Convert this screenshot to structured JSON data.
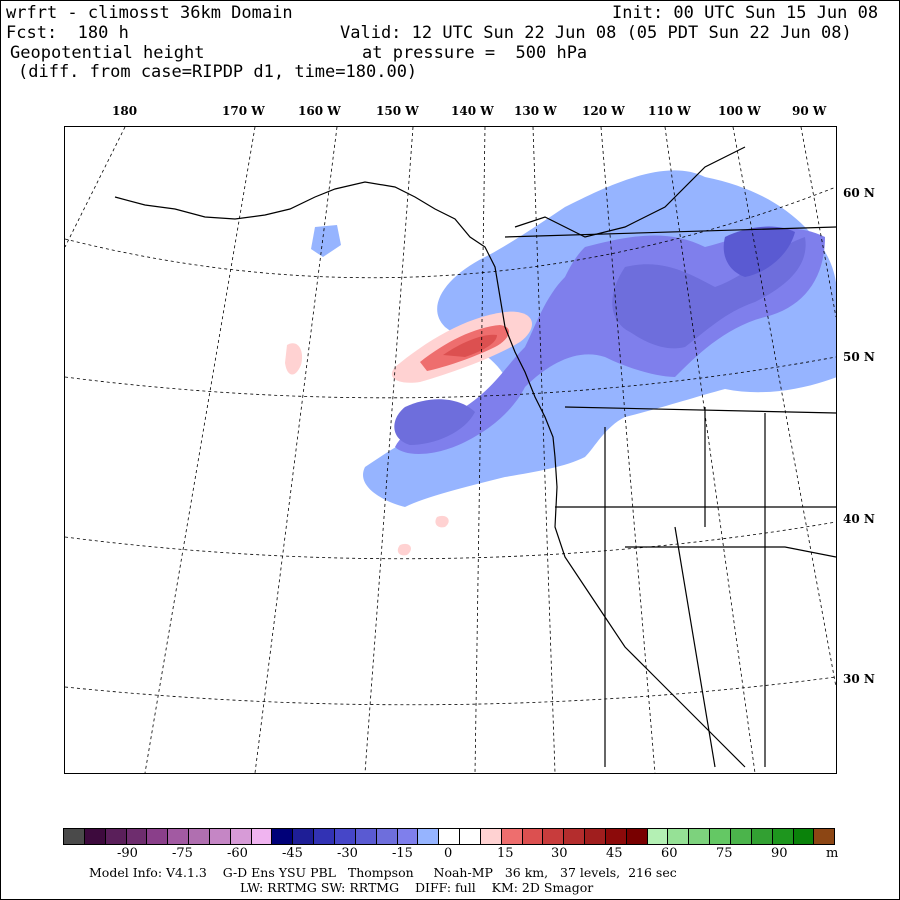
{
  "header": {
    "line1_left": "wrfrt - climosst 36km Domain",
    "line1_right": "Init: 00 UTC Sun 15 Jun 08",
    "line2_left": "Fcst:  180 h",
    "line2_right": "Valid: 12 UTC Sun 22 Jun 08 (05 PDT Sun 22 Jun 08)",
    "line3_left": "Geopotential height",
    "line3_right": "at pressure =  500 hPa",
    "line4": "(diff. from case=RIPDP d1, time=180.00)"
  },
  "lon_labels": [
    "180",
    "170 W",
    "160 W",
    "150 W",
    "140 W",
    "130 W",
    "120 W",
    "110 W",
    "100 W",
    "90 W"
  ],
  "lat_labels": [
    "60 N",
    "50 N",
    "40 N",
    "30 N"
  ],
  "colorbar": {
    "colors": [
      "#4a4a4a",
      "#3d0a3d",
      "#5a1f5a",
      "#6e2d6e",
      "#8a3f8a",
      "#a25aa2",
      "#b06fb0",
      "#c586c5",
      "#d79bd7",
      "#f0b4f0",
      "#000078",
      "#1e1e96",
      "#3232b4",
      "#4646c8",
      "#5a5ad2",
      "#6e6edc",
      "#7f7fec",
      "#96b4ff",
      "#ffffff",
      "#ffffff",
      "#ffd2d2",
      "#ee6e6e",
      "#dc5050",
      "#c83c3c",
      "#b42d2d",
      "#a01e1e",
      "#8c0a0a",
      "#780000",
      "#b4f0b4",
      "#96e196",
      "#7dd27d",
      "#64c864",
      "#4bb44b",
      "#32a032",
      "#1e961e",
      "#0a820a",
      "#8c4614"
    ],
    "labels": [
      "-90",
      "-75",
      "-60",
      "-45",
      "-30",
      "-15",
      "0",
      "15",
      "30",
      "45",
      "60",
      "75",
      "90"
    ],
    "unit": "m"
  },
  "footer": {
    "line1": "Model Info: V4.1.3    G-D Ens YSU PBL   Thompson     Noah-MP   36 km,   37 levels,  216 sec",
    "line2": "LW: RRTMG SW: RRTMG    DIFF: full    KM: 2D Smagor"
  }
}
